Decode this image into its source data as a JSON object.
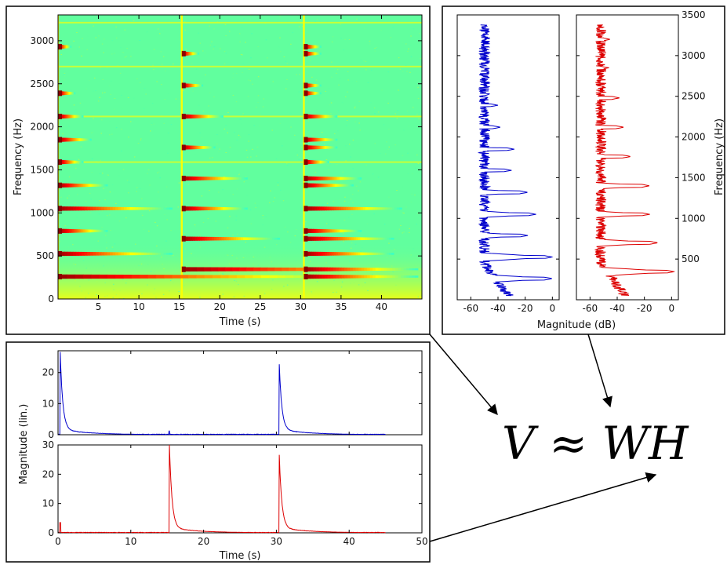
{
  "formula": "V ≈ WH",
  "chart_data": [
    {
      "type": "heatmap",
      "xlabel": "Time (s)",
      "ylabel": "Frequency (Hz)",
      "xlim": [
        0,
        45
      ],
      "ylim": [
        0,
        3300
      ],
      "x_ticks": [
        5,
        10,
        15,
        20,
        25,
        30,
        35,
        40
      ],
      "y_ticks": [
        0,
        500,
        1000,
        1500,
        2000,
        2500,
        3000
      ],
      "onsets": [
        0,
        15.3,
        30.4
      ],
      "harmonics": [
        {
          "freq": 260,
          "onset": 0,
          "decay": 40
        },
        {
          "freq": 525,
          "onset": 0,
          "decay": 14
        },
        {
          "freq": 790,
          "onset": 0,
          "decay": 6
        },
        {
          "freq": 1050,
          "onset": 0,
          "decay": 14
        },
        {
          "freq": 1320,
          "onset": 0,
          "decay": 6
        },
        {
          "freq": 1590,
          "onset": 0,
          "decay": 3
        },
        {
          "freq": 1850,
          "onset": 0,
          "decay": 4
        },
        {
          "freq": 2120,
          "onset": 0,
          "decay": 3
        },
        {
          "freq": 2390,
          "onset": 0,
          "decay": 2
        },
        {
          "freq": 2930,
          "onset": 0,
          "decay": 1.5
        },
        {
          "freq": 345,
          "onset": 15.3,
          "decay": 35
        },
        {
          "freq": 700,
          "onset": 15.3,
          "decay": 12
        },
        {
          "freq": 1050,
          "onset": 15.3,
          "decay": 8
        },
        {
          "freq": 1400,
          "onset": 15.3,
          "decay": 8
        },
        {
          "freq": 1760,
          "onset": 15.3,
          "decay": 4
        },
        {
          "freq": 2120,
          "onset": 15.3,
          "decay": 5
        },
        {
          "freq": 2480,
          "onset": 15.3,
          "decay": 2.5
        },
        {
          "freq": 2850,
          "onset": 15.3,
          "decay": 2
        },
        {
          "freq": 260,
          "onset": 30.4,
          "decay": 14
        },
        {
          "freq": 345,
          "onset": 30.4,
          "decay": 14
        },
        {
          "freq": 525,
          "onset": 30.4,
          "decay": 11
        },
        {
          "freq": 700,
          "onset": 30.4,
          "decay": 11
        },
        {
          "freq": 790,
          "onset": 30.4,
          "decay": 7
        },
        {
          "freq": 1050,
          "onset": 30.4,
          "decay": 12
        },
        {
          "freq": 1320,
          "onset": 30.4,
          "decay": 6
        },
        {
          "freq": 1400,
          "onset": 30.4,
          "decay": 7
        },
        {
          "freq": 1590,
          "onset": 30.4,
          "decay": 3
        },
        {
          "freq": 1760,
          "onset": 30.4,
          "decay": 4
        },
        {
          "freq": 1850,
          "onset": 30.4,
          "decay": 4
        },
        {
          "freq": 2120,
          "onset": 30.4,
          "decay": 4
        },
        {
          "freq": 2390,
          "onset": 30.4,
          "decay": 2
        },
        {
          "freq": 2480,
          "onset": 30.4,
          "decay": 2
        },
        {
          "freq": 2850,
          "onset": 30.4,
          "decay": 2
        },
        {
          "freq": 2930,
          "onset": 30.4,
          "decay": 2
        }
      ],
      "constant_lines": [
        1590,
        2120,
        2700,
        3210
      ]
    },
    {
      "type": "line",
      "xlabel": "Magnitude (dB)",
      "ylabel": "Frequency (Hz)",
      "xlim": [
        -70,
        5
      ],
      "ylim": [
        0,
        3500
      ],
      "x_ticks": [
        -60,
        -40,
        -20,
        0
      ],
      "y_ticks": [
        500,
        1000,
        1500,
        2000,
        2500,
        3000,
        3500
      ],
      "series": [
        {
          "color": "#0000cc",
          "baseline": -50,
          "noise": 4,
          "fmin": 50,
          "fmax": 3380,
          "peaks": [
            [
              260,
              0
            ],
            [
              525,
              0
            ],
            [
              790,
              -18
            ],
            [
              1050,
              -12
            ],
            [
              1320,
              -18
            ],
            [
              1590,
              -30
            ],
            [
              1850,
              -28
            ],
            [
              2120,
              -38
            ],
            [
              2390,
              -40
            ],
            [
              2930,
              -46
            ],
            [
              3200,
              -48
            ]
          ]
        },
        {
          "color": "#dd0000",
          "baseline": -52,
          "noise": 4,
          "fmin": 50,
          "fmax": 3380,
          "peaks": [
            [
              345,
              2
            ],
            [
              700,
              -10
            ],
            [
              1050,
              -16
            ],
            [
              1400,
              -16
            ],
            [
              1760,
              -30
            ],
            [
              2120,
              -35
            ],
            [
              2480,
              -38
            ],
            [
              2850,
              -46
            ],
            [
              3200,
              -45
            ]
          ]
        }
      ]
    },
    {
      "type": "line",
      "xlabel": "Time (s)",
      "ylabel": "Magnitude (lin.)",
      "xlim": [
        0,
        50
      ],
      "x_ticks": [
        0,
        10,
        20,
        30,
        40,
        50
      ],
      "series": [
        {
          "color": "#0000cc",
          "ylim": [
            0,
            27
          ],
          "y_ticks": [
            0,
            10,
            20
          ],
          "events": [
            [
              0.3,
              25
            ],
            [
              30.4,
              21
            ]
          ],
          "minor": [
            [
              15.3,
              1.2
            ]
          ]
        },
        {
          "color": "#dd0000",
          "ylim": [
            0,
            30
          ],
          "y_ticks": [
            0,
            10,
            20,
            30
          ],
          "events": [
            [
              15.3,
              29
            ],
            [
              30.4,
              25
            ]
          ],
          "minor": [
            [
              0.3,
              3.5
            ]
          ]
        }
      ]
    }
  ]
}
